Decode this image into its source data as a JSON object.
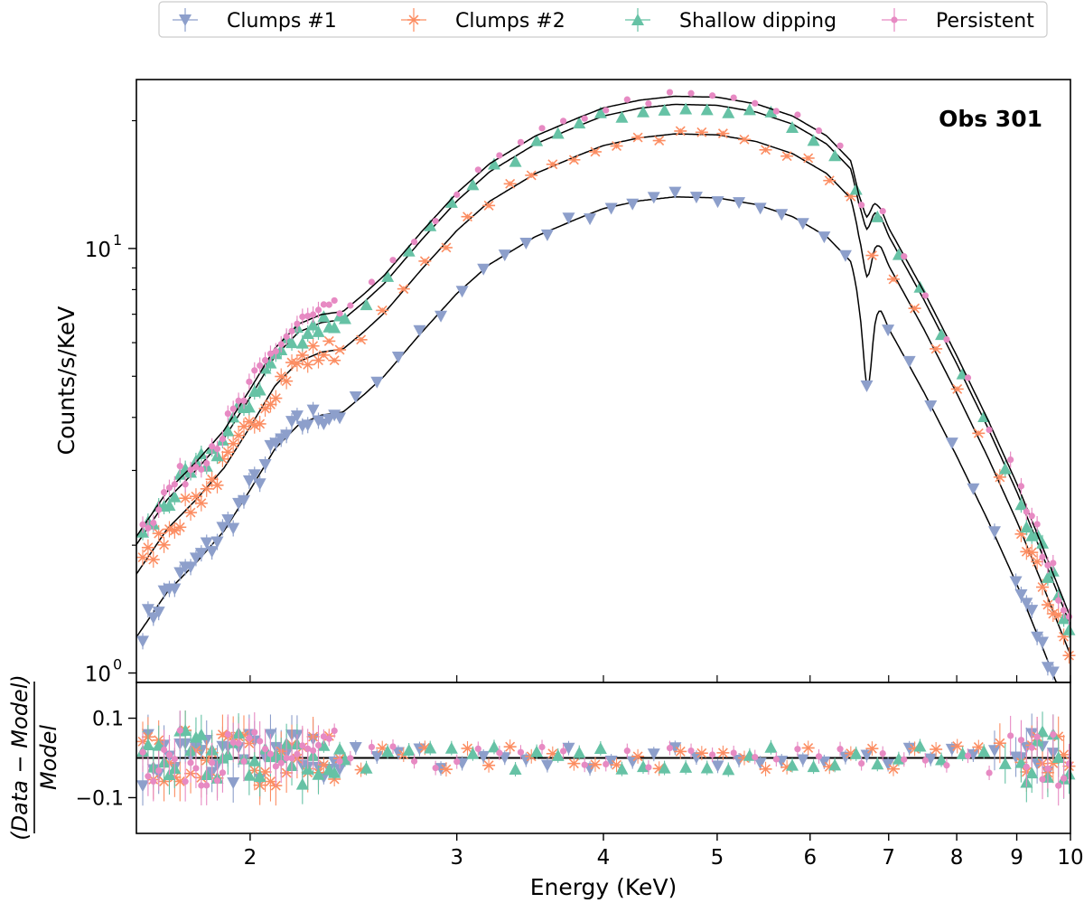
{
  "chart_data": {
    "type": "scatter",
    "legend": {
      "position": "top-center-outside",
      "entries": [
        "Clumps #1",
        "Clumps #2",
        "Shallow dipping",
        "Persistent"
      ]
    },
    "annotation": "Obs 301",
    "colors": {
      "Clumps #1": "#8D9FCB",
      "Clumps #2": "#FC8D62",
      "Shallow dipping": "#66C2A5",
      "Persistent": "#E78AC3",
      "model": "#000000"
    },
    "xlabel": "Energy (KeV)",
    "xscale": "log",
    "xlim": [
      1.6,
      10
    ],
    "x_ticks": [
      2,
      3,
      4,
      5,
      6,
      7,
      8,
      9,
      10
    ],
    "x_tick_labels": [
      "2",
      "3",
      "4",
      "5",
      "6",
      "7",
      "8",
      "9",
      "10"
    ],
    "top_panel": {
      "ylabel": "Counts/s/KeV",
      "yscale": "log",
      "ylim": [
        0.95,
        25
      ],
      "y_major_ticks": [
        1,
        10
      ],
      "y_tick_labels": [
        "10",
        "10"
      ],
      "y_tick_exponents": [
        "0",
        "1"
      ],
      "y_minor_ticks": [
        2,
        3,
        4,
        5,
        6,
        7,
        8,
        9,
        20
      ],
      "spectrum_shape": {
        "energy": [
          1.6,
          1.7,
          1.8,
          1.9,
          2.0,
          2.1,
          2.2,
          2.3,
          2.4,
          2.5,
          2.6,
          2.8,
          3.0,
          3.2,
          3.5,
          3.8,
          4.0,
          4.3,
          4.6,
          5.0,
          5.4,
          5.8,
          6.2,
          6.5,
          6.6,
          6.7,
          6.8,
          6.9,
          7.0,
          7.5,
          8.0,
          8.5,
          9.0,
          9.5,
          10.0
        ],
        "relative_counts": [
          0.09,
          0.115,
          0.135,
          0.16,
          0.2,
          0.25,
          0.285,
          0.3,
          0.305,
          0.335,
          0.37,
          0.47,
          0.58,
          0.68,
          0.79,
          0.87,
          0.92,
          0.96,
          0.98,
          0.975,
          0.94,
          0.88,
          0.79,
          0.69,
          0.58,
          0.53,
          0.56,
          0.53,
          0.48,
          0.34,
          0.24,
          0.17,
          0.12,
          0.083,
          0.058
        ]
      },
      "series": [
        {
          "name": "Clumps #1",
          "marker": "triangle-down",
          "scale": 13.5,
          "iron_edge_depth": 0.84
        },
        {
          "name": "Clumps #2",
          "marker": "x-star",
          "scale": 19.0,
          "iron_edge_depth": 0.93
        },
        {
          "name": "Shallow dipping",
          "marker": "triangle-up",
          "scale": 22.3,
          "iron_edge_depth": 0.97
        },
        {
          "name": "Persistent",
          "marker": "dot",
          "scale": 23.3,
          "iron_edge_depth": 0.98
        }
      ]
    },
    "bottom_panel": {
      "ylabel": "(Data − Model) / Model",
      "ylabel_numerator": "(Data − Model)",
      "ylabel_denominator": "Model",
      "ylim": [
        -0.19,
        0.19
      ],
      "y_ticks": [
        -0.1,
        0.1
      ],
      "y_tick_labels": [
        "−0.1",
        "0.1"
      ],
      "reference_line": 0,
      "residual_scatter_amplitude": 0.05
    }
  }
}
